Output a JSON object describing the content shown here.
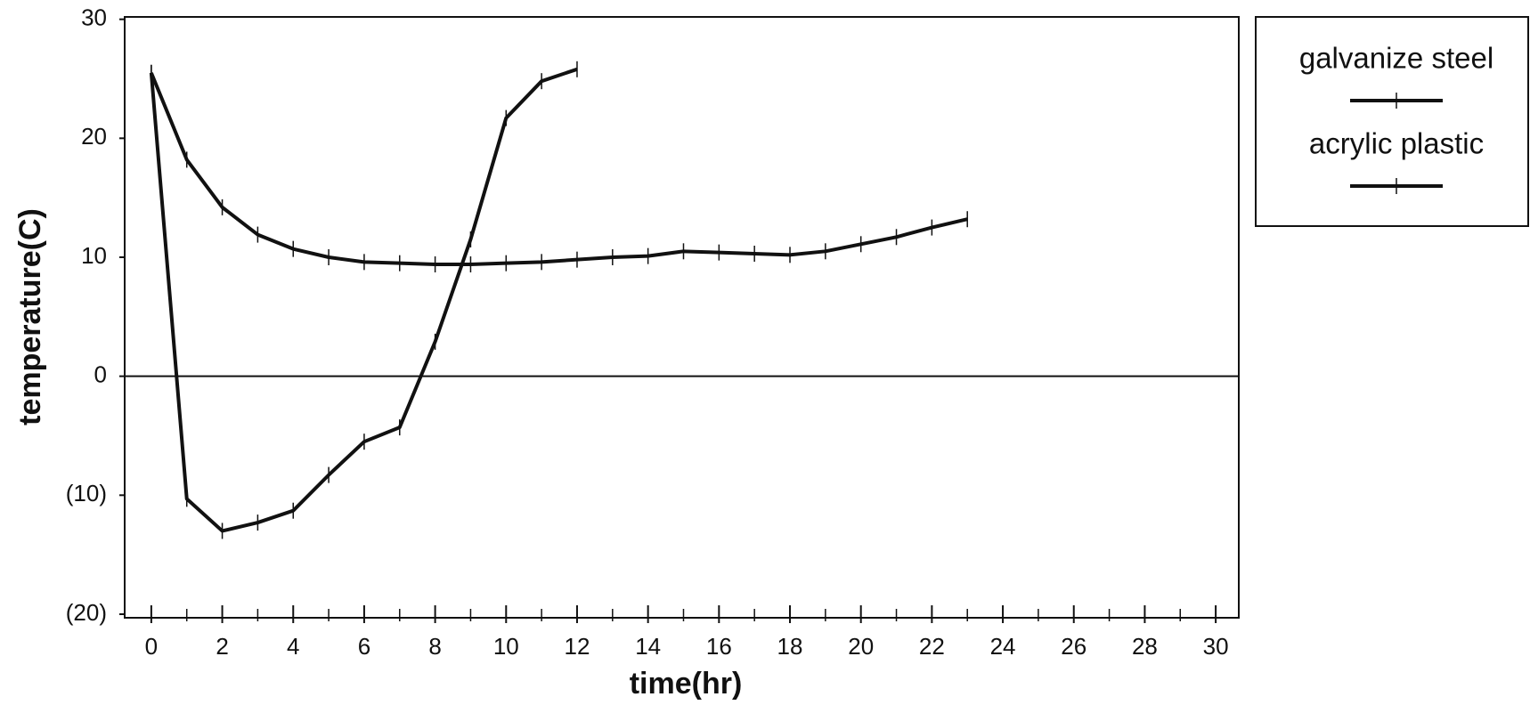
{
  "chart_data": {
    "type": "line",
    "x_label": "time(hr)",
    "y_label": "temperature(C)",
    "x": [
      0,
      1,
      2,
      3,
      4,
      5,
      6,
      7,
      8,
      9,
      10,
      11,
      12,
      13,
      14,
      15,
      16,
      17,
      18,
      19,
      20,
      21,
      22,
      23
    ],
    "series": [
      {
        "name": "galvanize steel",
        "color": "#111111",
        "values": [
          25.5,
          -10.3,
          -13,
          -12.3,
          -11.3,
          -8.3,
          -5.5,
          -4.3,
          2.9,
          11.5,
          21.7,
          24.8,
          25.8,
          null,
          null,
          null,
          null,
          null,
          null,
          null,
          null,
          null,
          null,
          null
        ]
      },
      {
        "name": "acrylic plastic",
        "color": "#111111",
        "values": [
          25.5,
          18.2,
          14.2,
          11.9,
          10.7,
          10,
          9.6,
          9.5,
          9.4,
          9.4,
          9.5,
          9.6,
          9.8,
          10,
          10.1,
          10.5,
          10.4,
          10.3,
          10.2,
          10.5,
          11.1,
          11.7,
          12.5,
          13.2
        ]
      }
    ],
    "xlim": [
      -0.75,
      30.65
    ],
    "ylim": [
      -20.3,
      30.2
    ],
    "xticks": [
      0,
      2,
      4,
      6,
      8,
      10,
      12,
      14,
      16,
      18,
      20,
      22,
      24,
      26,
      28,
      30
    ],
    "yticks": [
      {
        "value": -20,
        "label": "(20)"
      },
      {
        "value": -10,
        "label": "(10)"
      },
      0,
      10,
      20,
      30
    ],
    "grid": false,
    "legend": "right"
  }
}
